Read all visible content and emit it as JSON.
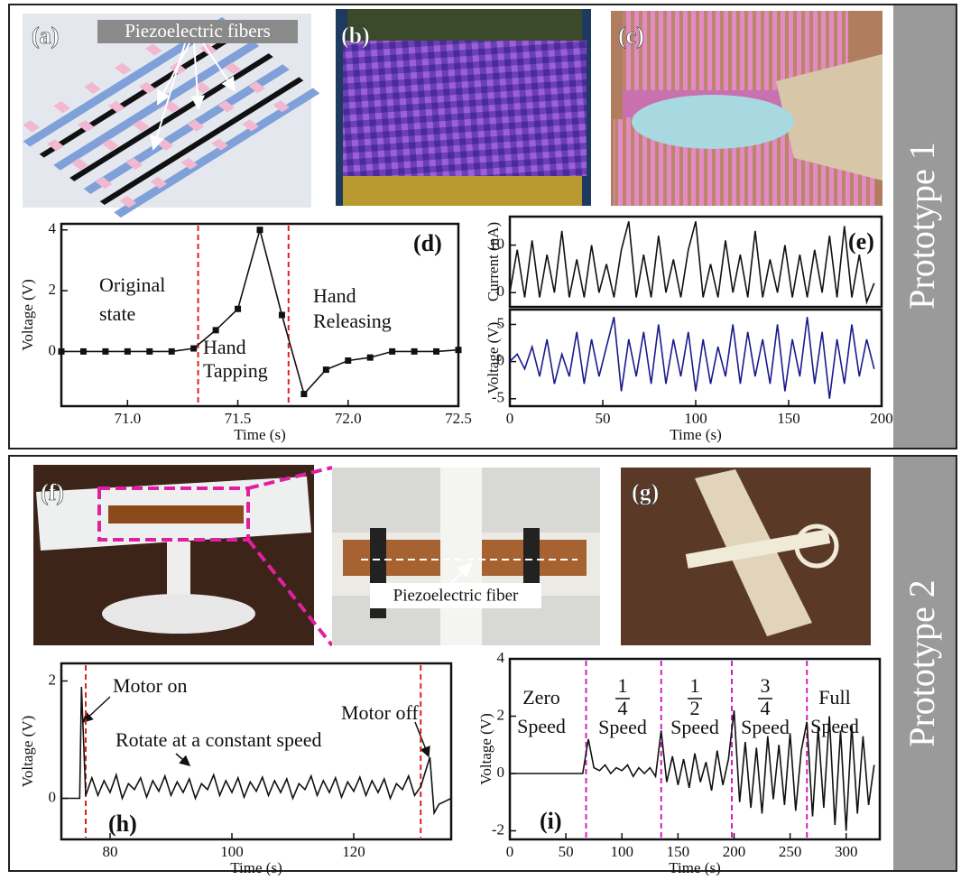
{
  "prototypes": [
    {
      "label": "Prototype 1"
    },
    {
      "label": "Prototype 2"
    }
  ],
  "panels": {
    "a": {
      "label": "(a)",
      "annotation": "Piezoelectric fibers"
    },
    "b": {
      "label": "(b)"
    },
    "c": {
      "label": "(c)"
    },
    "f": {
      "label": "(f)"
    },
    "inset": {
      "annotation": "Piezoelectric fiber"
    },
    "g": {
      "label": "(g)"
    }
  },
  "chart_data": [
    {
      "type": "line",
      "label": "(d)",
      "xlabel": "Time (s)",
      "ylabel": "Voltage (V)",
      "color": "#111111",
      "point_markers": true,
      "x": [
        70.7,
        70.8,
        70.9,
        71.0,
        71.1,
        71.2,
        71.3,
        71.4,
        71.5,
        71.6,
        71.7,
        71.8,
        71.9,
        72.0,
        72.1,
        72.2,
        72.3,
        72.4,
        72.5
      ],
      "values": [
        0,
        0,
        0,
        0,
        0,
        0,
        0.1,
        0.7,
        1.4,
        4.0,
        1.2,
        -1.4,
        -0.6,
        -0.3,
        -0.2,
        0,
        0,
        0,
        0.05
      ],
      "xlim": [
        70.7,
        72.5
      ],
      "xticks": [
        {
          "value": 71,
          "label": "71.0"
        },
        71.5,
        {
          "value": 72,
          "label": "72.0"
        },
        72.5
      ],
      "ylim": [
        -1.8,
        4.2
      ],
      "yticks": [
        0,
        2,
        4
      ],
      "markers": [
        71.32,
        71.73
      ],
      "marker_color": "#e02020",
      "annotations": [
        [
          "Original",
          "state"
        ],
        [
          "Hand",
          "Tapping"
        ],
        [
          "Hand",
          "Releasing"
        ]
      ]
    },
    {
      "type": "line",
      "label": "(e)",
      "ylabel": "Current (nA)",
      "color": "#111111",
      "x": [
        0,
        4,
        8,
        12,
        16,
        20,
        24,
        28,
        32,
        36,
        40,
        44,
        48,
        52,
        56,
        60,
        64,
        68,
        72,
        76,
        80,
        84,
        88,
        92,
        96,
        100,
        104,
        108,
        112,
        116,
        120,
        124,
        128,
        132,
        136,
        140,
        144,
        148,
        152,
        156,
        160,
        164,
        168,
        172,
        176,
        180,
        184,
        188,
        192,
        196
      ],
      "values": [
        0,
        9,
        -1,
        11,
        -1,
        8,
        0,
        13,
        -1,
        7,
        -1,
        10,
        0,
        6,
        -1,
        9,
        15,
        -1,
        8,
        -1,
        12,
        0,
        7,
        -1,
        9,
        15,
        -1,
        6,
        -1,
        11,
        0,
        8,
        -1,
        13,
        -1,
        7,
        0,
        10,
        -1,
        8,
        -1,
        9,
        0,
        12,
        -1,
        14,
        -1,
        8,
        -2,
        2
      ],
      "xlim": [
        0,
        200
      ],
      "ylim": [
        -3,
        16
      ],
      "yticks": [
        0,
        10
      ]
    },
    {
      "type": "line",
      "xlabel": "Time (s)",
      "ylabel": "Voltage (V)",
      "color": "#1a1a8c",
      "x": [
        0,
        4,
        8,
        12,
        16,
        20,
        24,
        28,
        32,
        36,
        40,
        44,
        48,
        52,
        56,
        60,
        64,
        68,
        72,
        76,
        80,
        84,
        88,
        92,
        96,
        100,
        104,
        108,
        112,
        116,
        120,
        124,
        128,
        132,
        136,
        140,
        144,
        148,
        152,
        156,
        160,
        164,
        168,
        172,
        176,
        180,
        184,
        188,
        192,
        196
      ],
      "values": [
        0,
        1,
        -1,
        2,
        -2,
        3,
        -3,
        1,
        -2,
        4,
        -3,
        3,
        -2,
        2,
        6,
        -4,
        3,
        -2,
        4,
        -3,
        5,
        -3,
        3,
        -2,
        4,
        -4,
        3,
        -3,
        2,
        -2,
        5,
        -3,
        4,
        -2,
        3,
        -3,
        5,
        -4,
        3,
        -2,
        6,
        -3,
        4,
        -5,
        3,
        -3,
        5,
        -2,
        3,
        -1
      ],
      "xlim": [
        0,
        200
      ],
      "xticks": [
        0,
        50,
        100,
        150,
        200
      ],
      "ylim": [
        -6,
        7
      ],
      "yticks": [
        -5,
        0,
        5
      ]
    },
    {
      "type": "line",
      "label": "(h)",
      "xlabel": "Time (s)",
      "ylabel": "Voltage (V)",
      "color": "#111111",
      "x": [
        72,
        73,
        74,
        75,
        75.3,
        76,
        77,
        78,
        79,
        80,
        81,
        82,
        83,
        84,
        85,
        86,
        87,
        88,
        89,
        90,
        91,
        92,
        93,
        94,
        95,
        96,
        97,
        98,
        99,
        100,
        101,
        102,
        103,
        104,
        105,
        106,
        107,
        108,
        109,
        110,
        111,
        112,
        113,
        114,
        115,
        116,
        117,
        118,
        119,
        120,
        121,
        122,
        123,
        124,
        125,
        126,
        127,
        128,
        129,
        130,
        131,
        132.5,
        133.2,
        134,
        135,
        136
      ],
      "values": [
        0,
        0,
        0,
        0,
        1.9,
        0.05,
        0.35,
        0.05,
        0.3,
        0.1,
        0.4,
        0.0,
        0.25,
        0.15,
        0.35,
        0.02,
        0.3,
        0.12,
        0.38,
        0.05,
        0.28,
        0.1,
        0.33,
        0.0,
        0.25,
        0.15,
        0.4,
        0.05,
        0.3,
        0.1,
        0.35,
        0.02,
        0.28,
        0.12,
        0.36,
        0.05,
        0.3,
        0.1,
        0.33,
        0.0,
        0.25,
        0.15,
        0.38,
        0.05,
        0.3,
        0.1,
        0.35,
        0.02,
        0.28,
        0.12,
        0.36,
        0.05,
        0.3,
        0.1,
        0.33,
        0.0,
        0.25,
        0.15,
        0.38,
        0.05,
        0.2,
        0.7,
        -0.25,
        -0.1,
        -0.05,
        0
      ],
      "xlim": [
        72,
        136
      ],
      "xticks": [
        80,
        100,
        120
      ],
      "ylim": [
        -0.7,
        2.3
      ],
      "yticks": [
        0,
        2
      ],
      "markers": [
        76,
        131
      ],
      "marker_color": "#e02020",
      "annotations": [
        [
          "Motor on"
        ],
        [
          "Rotate at a constant speed"
        ],
        [
          "Motor off"
        ]
      ]
    },
    {
      "type": "line",
      "label": "(i)",
      "xlabel": "Time (s)",
      "ylabel": "Voltage (V)",
      "color": "#111111",
      "x": [
        0,
        5,
        10,
        15,
        20,
        25,
        30,
        35,
        40,
        45,
        50,
        55,
        60,
        65,
        70,
        75,
        80,
        85,
        90,
        95,
        100,
        105,
        110,
        115,
        120,
        125,
        130,
        135,
        140,
        145,
        150,
        155,
        160,
        165,
        170,
        175,
        180,
        185,
        190,
        195,
        200,
        205,
        210,
        215,
        220,
        225,
        230,
        235,
        240,
        245,
        250,
        255,
        260,
        265,
        270,
        275,
        280,
        285,
        290,
        295,
        300,
        305,
        310,
        315,
        320,
        325
      ],
      "values": [
        0,
        0,
        0,
        0,
        0,
        0,
        0,
        0,
        0,
        0,
        0,
        0,
        0,
        0,
        1.2,
        0.2,
        0.1,
        0.3,
        0.0,
        0.2,
        0.1,
        0.3,
        -0.1,
        0.2,
        0.0,
        0.2,
        -0.1,
        1.5,
        -0.3,
        0.6,
        -0.4,
        0.5,
        -0.5,
        0.7,
        -0.3,
        0.4,
        -0.6,
        0.8,
        -0.4,
        0.5,
        2.2,
        -1.0,
        1.1,
        -1.2,
        0.9,
        -1.4,
        1.3,
        -0.9,
        1.0,
        -1.1,
        1.4,
        -1.3,
        0.8,
        1.8,
        -1.5,
        1.6,
        -1.2,
        2.0,
        -1.8,
        1.5,
        -2.0,
        1.7,
        -1.4,
        1.3,
        -1.1,
        0.3
      ],
      "xlim": [
        0,
        330
      ],
      "xticks": [
        0,
        50,
        100,
        150,
        200,
        250,
        300
      ],
      "ylim": [
        -2.3,
        4
      ],
      "yticks": [
        -2,
        0,
        2,
        4
      ],
      "markers": [
        68,
        135,
        198,
        265
      ],
      "marker_color": "#d020c0",
      "phases": [
        {
          "lines": [
            "Zero",
            "Speed"
          ]
        },
        {
          "fraction": [
            "1",
            "4"
          ],
          "lines": [
            "Speed"
          ]
        },
        {
          "fraction": [
            "1",
            "2"
          ],
          "lines": [
            "Speed"
          ]
        },
        {
          "fraction": [
            "3",
            "4"
          ],
          "lines": [
            "Speed"
          ]
        },
        {
          "lines": [
            "Full",
            "Speed"
          ]
        }
      ]
    }
  ]
}
